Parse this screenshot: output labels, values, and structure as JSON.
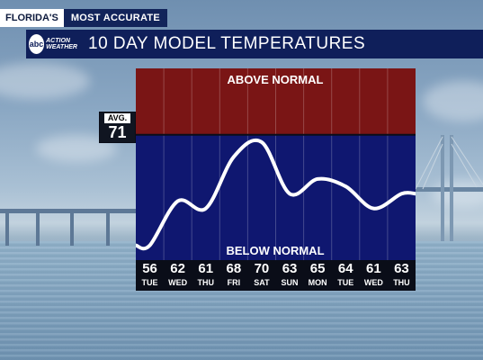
{
  "brand": {
    "station": "FLORIDA'S",
    "tagline": "MOST ACCURATE",
    "logo_network": "abc",
    "logo_text": [
      "ACTION",
      "WEATHER"
    ]
  },
  "title": "10 DAY MODEL TEMPERATURES",
  "average": {
    "label": "AVG.",
    "value": "71"
  },
  "colors": {
    "above": "#7a1515",
    "below": "#0f1770",
    "title_bar": "#0f1f5a",
    "curve": "#ffffff"
  },
  "chart_data": {
    "type": "line",
    "regions": {
      "above_label": "ABOVE NORMAL",
      "below_label": "BELOW NORMAL"
    },
    "average": 71,
    "ylim": [
      54,
      80
    ],
    "grid": true,
    "categories": [
      "TUE",
      "WED",
      "THU",
      "FRI",
      "SAT",
      "SUN",
      "MON",
      "TUE",
      "WED",
      "THU"
    ],
    "values": [
      56,
      62,
      61,
      68,
      70,
      63,
      65,
      64,
      61,
      63
    ],
    "day_labels": [
      {
        "temp": "56",
        "day": "TUE"
      },
      {
        "temp": "62",
        "day": "WED"
      },
      {
        "temp": "61",
        "day": "THU"
      },
      {
        "temp": "68",
        "day": "FRI"
      },
      {
        "temp": "70",
        "day": "SAT"
      },
      {
        "temp": "63",
        "day": "SUN"
      },
      {
        "temp": "65",
        "day": "MON"
      },
      {
        "temp": "64",
        "day": "TUE"
      },
      {
        "temp": "61",
        "day": "WED"
      },
      {
        "temp": "63",
        "day": "THU"
      }
    ]
  }
}
